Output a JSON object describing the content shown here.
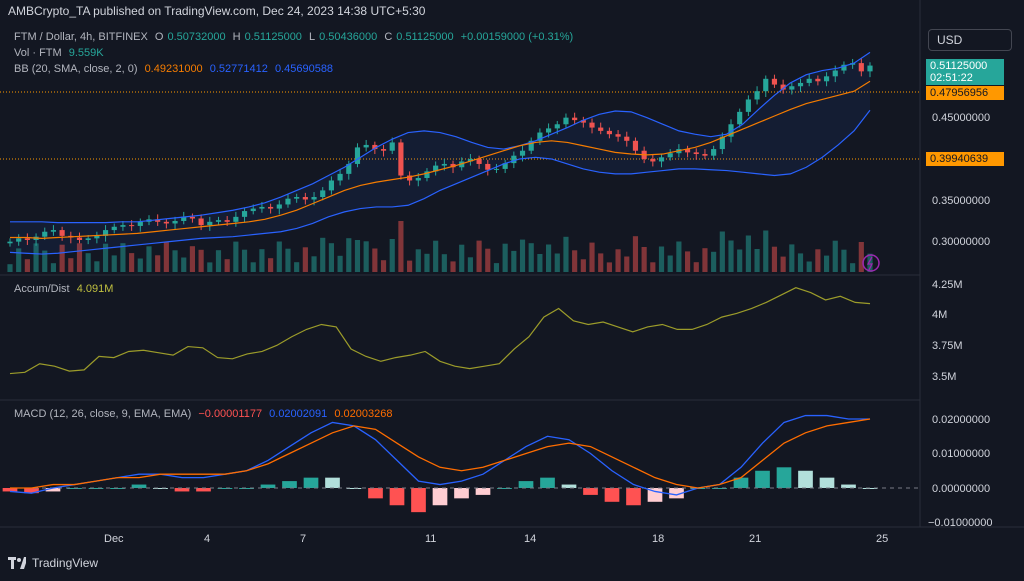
{
  "header": {
    "published": "AMBCrypto_TA published on TradingView.com, Dec 24, 2023 14:38 UTC+5:30"
  },
  "legend": {
    "symbol": "FTM / Dollar, 4h, BITFINEX",
    "open_label": "O",
    "open": "0.50732000",
    "high_label": "H",
    "high": "0.51125000",
    "low_label": "L",
    "low": "0.50436000",
    "close_label": "C",
    "close": "0.51125000",
    "change": "+0.00159000 (+0.31%)",
    "vol_label": "Vol · FTM",
    "vol": "9.559K",
    "bb_label": "BB (20, SMA, close, 2, 0)",
    "bb_basis": "0.49231000",
    "bb_upper": "0.52771412",
    "bb_lower": "0.45690588",
    "ad_label": "Accum/Dist",
    "ad_value": "4.091M",
    "macd_label": "MACD (12, 26, close, 9, EMA, EMA)",
    "macd_hist": "−0.00001177",
    "macd_line": "0.02002091",
    "macd_signal": "0.02003268"
  },
  "currency_button": "USD",
  "price_tags": {
    "last_price": "0.51125000",
    "countdown": "02:51:22",
    "bb_basis": "0.47956956",
    "level": "0.39940639"
  },
  "y_axis_main": [
    "0.45000000",
    "0.40000000",
    "0.35000000",
    "0.30000000"
  ],
  "y_axis_ad": [
    "4.25M",
    "4M",
    "3.75M",
    "3.5M"
  ],
  "y_axis_macd": [
    "0.02000000",
    "0.01000000",
    "0.00000000",
    "−0.01000000"
  ],
  "x_axis": [
    "Dec",
    "4",
    "7",
    "11",
    "14",
    "18",
    "21",
    "25"
  ],
  "footer_brand": "TradingView",
  "colors": {
    "up": "#26a69a",
    "down": "#ef5350",
    "bb_band": "#2962ff",
    "bb_basis": "#f57c00",
    "ad_line": "#9c9c2a",
    "macd_line": "#2962ff",
    "signal_line": "#ff6d00",
    "level_line": "#ff9800",
    "bg": "#131722"
  },
  "chart_data": {
    "type": "line",
    "title": "FTM / Dollar, 4h, BITFINEX",
    "ylim": [
      0.26,
      0.55
    ],
    "price_close": [
      0.298,
      0.302,
      0.3,
      0.304,
      0.31,
      0.312,
      0.305,
      0.303,
      0.3,
      0.302,
      0.305,
      0.312,
      0.316,
      0.318,
      0.317,
      0.322,
      0.325,
      0.322,
      0.32,
      0.323,
      0.328,
      0.326,
      0.318,
      0.322,
      0.324,
      0.322,
      0.328,
      0.335,
      0.338,
      0.34,
      0.338,
      0.343,
      0.35,
      0.352,
      0.349,
      0.352,
      0.36,
      0.372,
      0.38,
      0.392,
      0.412,
      0.415,
      0.41,
      0.408,
      0.418,
      0.378,
      0.372,
      0.375,
      0.383,
      0.39,
      0.392,
      0.388,
      0.395,
      0.398,
      0.392,
      0.385,
      0.386,
      0.393,
      0.402,
      0.408,
      0.42,
      0.43,
      0.435,
      0.44,
      0.448,
      0.445,
      0.442,
      0.436,
      0.432,
      0.428,
      0.425,
      0.42,
      0.408,
      0.398,
      0.395,
      0.4,
      0.405,
      0.41,
      0.406,
      0.404,
      0.402,
      0.41,
      0.425,
      0.44,
      0.455,
      0.47,
      0.48,
      0.495,
      0.488,
      0.482,
      0.486,
      0.49,
      0.495,
      0.492,
      0.498,
      0.505,
      0.512,
      0.514,
      0.504,
      0.511
    ],
    "bb_upper": [
      0.322,
      0.322,
      0.322,
      0.321,
      0.321,
      0.321,
      0.321,
      0.322,
      0.322,
      0.324,
      0.326,
      0.328,
      0.33,
      0.333,
      0.336,
      0.34,
      0.345,
      0.352,
      0.36,
      0.368,
      0.378,
      0.388,
      0.4,
      0.412,
      0.422,
      0.43,
      0.432,
      0.43,
      0.425,
      0.418,
      0.412,
      0.41,
      0.414,
      0.42,
      0.428,
      0.436,
      0.445,
      0.452,
      0.456,
      0.455,
      0.448,
      0.44,
      0.432,
      0.428,
      0.425,
      0.428,
      0.44,
      0.458,
      0.475,
      0.49,
      0.5,
      0.505,
      0.508,
      0.514,
      0.527
    ],
    "bb_basis": [
      0.303,
      0.303,
      0.302,
      0.303,
      0.304,
      0.305,
      0.306,
      0.307,
      0.308,
      0.31,
      0.312,
      0.314,
      0.316,
      0.318,
      0.32,
      0.322,
      0.325,
      0.33,
      0.336,
      0.344,
      0.352,
      0.36,
      0.366,
      0.37,
      0.373,
      0.376,
      0.38,
      0.385,
      0.39,
      0.396,
      0.402,
      0.408,
      0.414,
      0.418,
      0.42,
      0.418,
      0.414,
      0.41,
      0.406,
      0.404,
      0.403,
      0.404,
      0.408,
      0.412,
      0.418,
      0.426,
      0.434,
      0.442,
      0.45,
      0.458,
      0.465,
      0.47,
      0.475,
      0.48,
      0.492
    ],
    "bb_lower": [
      0.285,
      0.284,
      0.283,
      0.284,
      0.286,
      0.288,
      0.29,
      0.292,
      0.294,
      0.296,
      0.298,
      0.3,
      0.302,
      0.303,
      0.304,
      0.306,
      0.308,
      0.31,
      0.314,
      0.32,
      0.328,
      0.334,
      0.338,
      0.34,
      0.34,
      0.342,
      0.35,
      0.36,
      0.368,
      0.376,
      0.384,
      0.392,
      0.398,
      0.4,
      0.398,
      0.392,
      0.386,
      0.382,
      0.38,
      0.38,
      0.382,
      0.384,
      0.386,
      0.386,
      0.385,
      0.384,
      0.382,
      0.38,
      0.378,
      0.38,
      0.388,
      0.4,
      0.415,
      0.432,
      0.457
    ],
    "accum_dist": [
      3.52,
      3.53,
      3.6,
      3.58,
      3.54,
      3.55,
      3.66,
      3.65,
      3.7,
      3.71,
      3.69,
      3.67,
      3.74,
      3.73,
      3.65,
      3.64,
      3.68,
      3.7,
      3.75,
      3.82,
      3.88,
      3.92,
      3.9,
      3.72,
      3.66,
      3.62,
      3.65,
      3.67,
      3.7,
      3.62,
      3.58,
      3.56,
      3.58,
      3.6,
      3.72,
      3.82,
      3.98,
      4.05,
      3.95,
      3.92,
      3.94,
      3.9,
      3.86,
      3.9,
      3.92,
      3.88,
      3.88,
      3.92,
      3.98,
      4.01,
      4.05,
      4.1,
      4.16,
      4.22,
      4.18,
      4.12,
      4.15,
      4.1,
      4.09
    ],
    "macd_line": [
      -0.001,
      -0.0015,
      0.0,
      0.001,
      0.002,
      0.003,
      0.004,
      0.004,
      0.003,
      0.003,
      0.004,
      0.005,
      0.008,
      0.012,
      0.016,
      0.019,
      0.018,
      0.014,
      0.008,
      0.002,
      0.001,
      0.002,
      0.004,
      0.008,
      0.012,
      0.015,
      0.014,
      0.01,
      0.005,
      0.001,
      -0.001,
      -0.002,
      0.0,
      0.001,
      0.006,
      0.013,
      0.019,
      0.021,
      0.021,
      0.02,
      0.02
    ],
    "signal_line": [
      0.0,
      0.0,
      0.001,
      0.001,
      0.002,
      0.003,
      0.003,
      0.004,
      0.004,
      0.004,
      0.004,
      0.005,
      0.007,
      0.01,
      0.013,
      0.016,
      0.018,
      0.017,
      0.013,
      0.009,
      0.006,
      0.005,
      0.006,
      0.008,
      0.01,
      0.012,
      0.013,
      0.012,
      0.009,
      0.006,
      0.003,
      0.001,
      0.0,
      0.001,
      0.003,
      0.008,
      0.013,
      0.016,
      0.018,
      0.019,
      0.02
    ]
  }
}
